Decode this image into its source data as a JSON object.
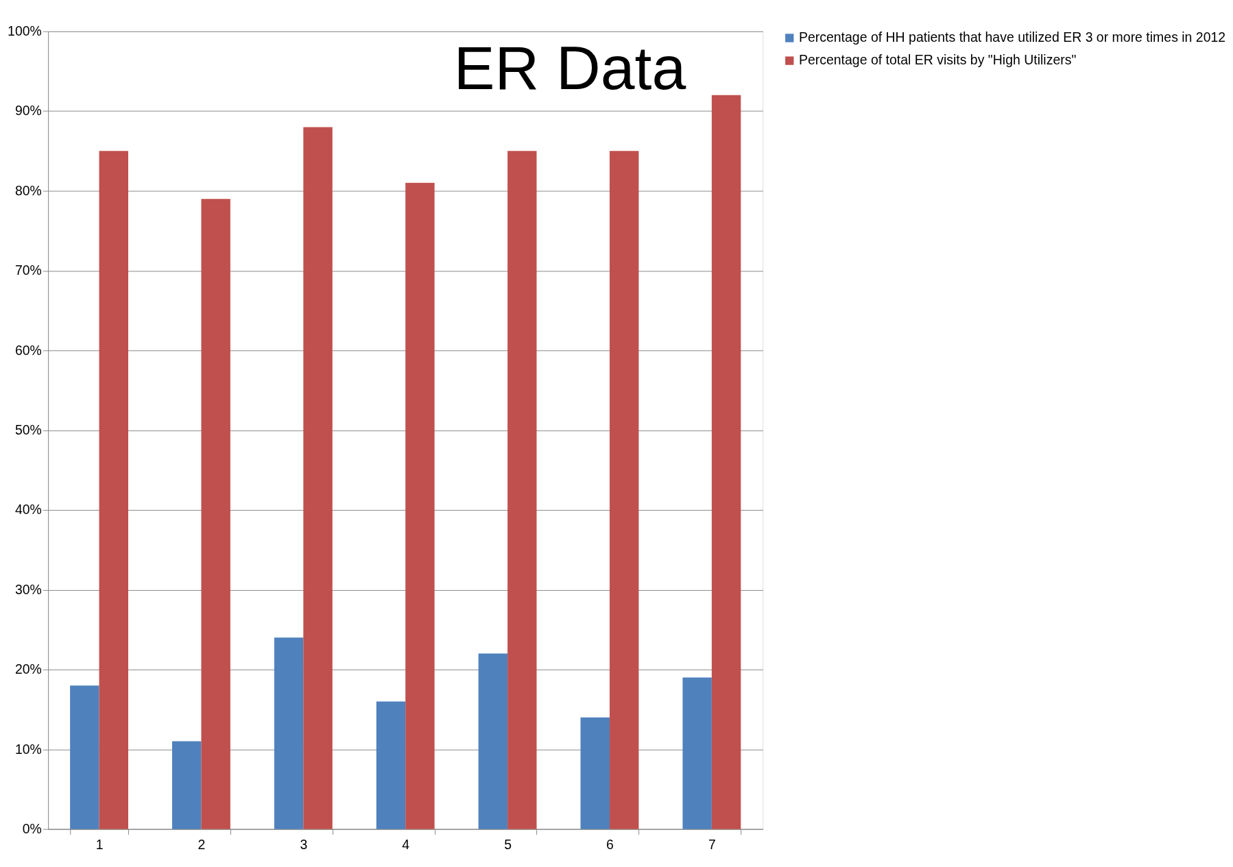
{
  "chart_data": {
    "type": "bar",
    "title": "ER Data",
    "categories": [
      "1",
      "2",
      "3",
      "4",
      "5",
      "6",
      "7"
    ],
    "series": [
      {
        "name": "Percentage of HH patients that have utilized ER 3 or more times in 2012",
        "color": "#4f81bd",
        "values": [
          18,
          11,
          24,
          16,
          22,
          14,
          19
        ]
      },
      {
        "name": "Percentage of total ER visits by \"High Utilizers\"",
        "color": "#c0504d",
        "values": [
          85,
          79,
          88,
          81,
          85,
          85,
          92
        ]
      }
    ],
    "ylim": [
      0,
      100
    ],
    "yticks": [
      {
        "value": 0,
        "label": "0%"
      },
      {
        "value": 10,
        "label": "10%"
      },
      {
        "value": 20,
        "label": "20%"
      },
      {
        "value": 30,
        "label": "30%"
      },
      {
        "value": 40,
        "label": "40%"
      },
      {
        "value": 50,
        "label": "50%"
      },
      {
        "value": 60,
        "label": "60%"
      },
      {
        "value": 70,
        "label": "70%"
      },
      {
        "value": 80,
        "label": "80%"
      },
      {
        "value": 90,
        "label": "90%"
      },
      {
        "value": 100,
        "label": "100%"
      }
    ],
    "grid": "y",
    "legend": "right"
  }
}
